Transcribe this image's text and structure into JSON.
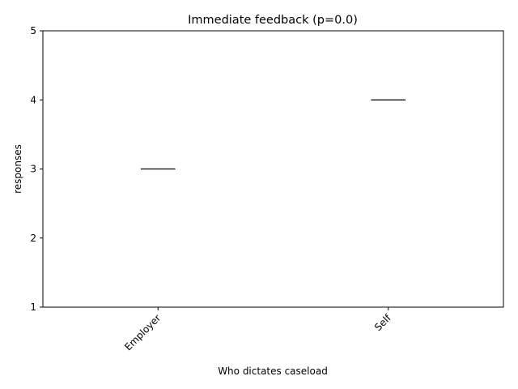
{
  "chart_data": {
    "type": "box",
    "title": "Immediate feedback (p=0.0)",
    "xlabel": "Who dictates caseload",
    "ylabel": "responses",
    "categories": [
      "Employer",
      "Self"
    ],
    "values": [
      3,
      4
    ],
    "ylim": [
      1,
      5
    ],
    "yticks": [
      "1",
      "2",
      "3",
      "4",
      "5"
    ],
    "grid": false,
    "legend": "none",
    "median_color": "#000000"
  }
}
